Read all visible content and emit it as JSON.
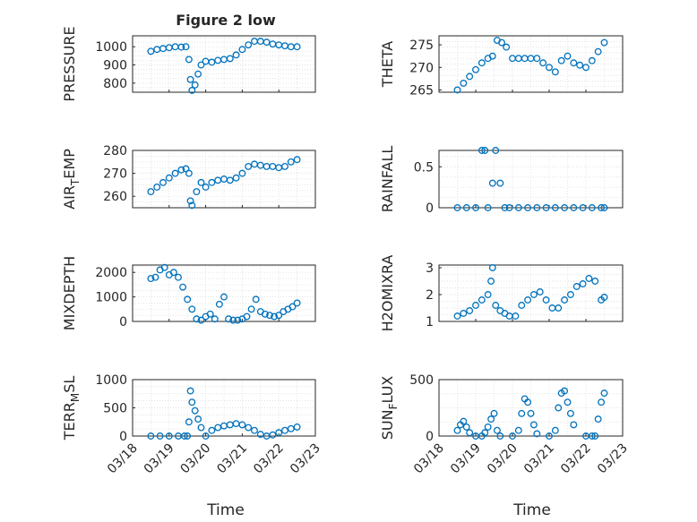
{
  "figure": {
    "title": "Figure 2 low",
    "xlabel": "Time",
    "xtick_labels": [
      "03/18",
      "03/19",
      "03/20",
      "03/21",
      "03/22",
      "03/23"
    ]
  },
  "style": {
    "marker_color": "#0072BD",
    "axis_color": "#262626",
    "grid_color": "#d9d9d9"
  },
  "chart_data": [
    {
      "type": "scatter",
      "ylabel": "PRESSURE",
      "ylim": [
        750,
        1060
      ],
      "yticks": [
        800,
        900,
        1000
      ],
      "ytick_labels": [
        "800",
        "900",
        "1000"
      ],
      "grid": true,
      "x": [
        "03/18 12:00",
        "03/18 16:00",
        "03/18 20:00",
        "03/19 00:00",
        "03/19 04:00",
        "03/19 08:00",
        "03/19 11:00",
        "03/19 13:00",
        "03/19 14:00",
        "03/19 15:00",
        "03/19 17:00",
        "03/19 19:00",
        "03/19 21:00",
        "03/20 00:00",
        "03/20 04:00",
        "03/20 08:00",
        "03/20 12:00",
        "03/20 16:00",
        "03/20 20:00",
        "03/21 00:00",
        "03/21 04:00",
        "03/21 08:00",
        "03/21 12:00",
        "03/21 16:00",
        "03/21 20:00",
        "03/22 00:00",
        "03/22 04:00",
        "03/22 08:00",
        "03/22 12:00"
      ],
      "y": [
        975,
        985,
        990,
        995,
        1000,
        998,
        1000,
        930,
        820,
        760,
        790,
        850,
        900,
        920,
        915,
        925,
        930,
        935,
        955,
        985,
        1010,
        1030,
        1030,
        1025,
        1015,
        1010,
        1005,
        1000,
        1000
      ]
    },
    {
      "type": "scatter",
      "ylabel": "THETA",
      "ylim": [
        264.5,
        277
      ],
      "yticks": [
        265,
        270,
        275
      ],
      "ytick_labels": [
        "265",
        "270",
        "275"
      ],
      "grid": true,
      "x": [
        "03/18 12:00",
        "03/18 16:00",
        "03/18 20:00",
        "03/19 00:00",
        "03/19 04:00",
        "03/19 08:00",
        "03/19 11:00",
        "03/19 14:00",
        "03/19 17:00",
        "03/19 20:00",
        "03/20 00:00",
        "03/20 04:00",
        "03/20 08:00",
        "03/20 12:00",
        "03/20 16:00",
        "03/20 20:00",
        "03/21 00:00",
        "03/21 04:00",
        "03/21 08:00",
        "03/21 12:00",
        "03/21 16:00",
        "03/21 20:00",
        "03/22 00:00",
        "03/22 04:00",
        "03/22 08:00",
        "03/22 12:00"
      ],
      "y": [
        265,
        266.5,
        268,
        269.5,
        271,
        272,
        272.5,
        276,
        275.5,
        274.5,
        272,
        272,
        272,
        272,
        272,
        271,
        270,
        269,
        271.5,
        272.5,
        271,
        270.5,
        270,
        271.5,
        273.5,
        275.5
      ]
    },
    {
      "type": "scatter",
      "ylabel": "AIR",
      "ylabel_sub": "T",
      "ylabel_rest": "EMP",
      "ylim": [
        255,
        280
      ],
      "yticks": [
        260,
        270,
        280
      ],
      "ytick_labels": [
        "260",
        "270",
        "280"
      ],
      "grid": true,
      "x": [
        "03/18 12:00",
        "03/18 16:00",
        "03/18 20:00",
        "03/19 00:00",
        "03/19 04:00",
        "03/19 08:00",
        "03/19 11:00",
        "03/19 13:00",
        "03/19 14:00",
        "03/19 15:00",
        "03/19 18:00",
        "03/19 21:00",
        "03/20 00:00",
        "03/20 04:00",
        "03/20 08:00",
        "03/20 12:00",
        "03/20 16:00",
        "03/20 20:00",
        "03/21 00:00",
        "03/21 04:00",
        "03/21 08:00",
        "03/21 12:00",
        "03/21 16:00",
        "03/21 20:00",
        "03/22 00:00",
        "03/22 04:00",
        "03/22 08:00",
        "03/22 12:00"
      ],
      "y": [
        262,
        264,
        266,
        268,
        270,
        271.5,
        272,
        270,
        258,
        256,
        262,
        266,
        264,
        266,
        267,
        267.5,
        267,
        268,
        270,
        273,
        274,
        273.5,
        273,
        273,
        272.5,
        273,
        275,
        276
      ]
    },
    {
      "type": "scatter",
      "ylabel": "RAINFALL",
      "ylim": [
        0,
        0.7
      ],
      "yticks": [
        0,
        0.5
      ],
      "ytick_labels": [
        "0",
        "0.5"
      ],
      "grid": true,
      "x": [
        "03/18 12:00",
        "03/18 18:00",
        "03/19 00:00",
        "03/19 04:00",
        "03/19 06:00",
        "03/19 08:00",
        "03/19 11:00",
        "03/19 13:00",
        "03/19 16:00",
        "03/19 19:00",
        "03/19 22:00",
        "03/20 04:00",
        "03/20 10:00",
        "03/20 16:00",
        "03/20 22:00",
        "03/21 04:00",
        "03/21 10:00",
        "03/21 16:00",
        "03/21 22:00",
        "03/22 04:00",
        "03/22 10:00",
        "03/22 12:00"
      ],
      "y": [
        0,
        0,
        0,
        0.7,
        0.7,
        0,
        0.3,
        0.7,
        0.3,
        0,
        0,
        0,
        0,
        0,
        0,
        0,
        0,
        0,
        0,
        0,
        0,
        0
      ]
    },
    {
      "type": "scatter",
      "ylabel": "MIXDEPTH",
      "ylim": [
        0,
        2300
      ],
      "yticks": [
        0,
        1000,
        2000
      ],
      "ytick_labels": [
        "0",
        "1000",
        "2000"
      ],
      "grid": true,
      "x": [
        "03/18 12:00",
        "03/18 15:00",
        "03/18 18:00",
        "03/18 21:00",
        "03/19 00:00",
        "03/19 03:00",
        "03/19 06:00",
        "03/19 09:00",
        "03/19 12:00",
        "03/19 15:00",
        "03/19 18:00",
        "03/19 21:00",
        "03/20 00:00",
        "03/20 03:00",
        "03/20 06:00",
        "03/20 09:00",
        "03/20 12:00",
        "03/20 15:00",
        "03/20 18:00",
        "03/20 21:00",
        "03/21 00:00",
        "03/21 03:00",
        "03/21 06:00",
        "03/21 09:00",
        "03/21 12:00",
        "03/21 15:00",
        "03/21 18:00",
        "03/21 21:00",
        "03/22 00:00",
        "03/22 03:00",
        "03/22 06:00",
        "03/22 09:00",
        "03/22 12:00"
      ],
      "y": [
        1750,
        1800,
        2100,
        2200,
        1900,
        2000,
        1800,
        1400,
        900,
        500,
        100,
        50,
        200,
        300,
        100,
        700,
        1000,
        100,
        50,
        50,
        100,
        200,
        500,
        900,
        400,
        300,
        250,
        200,
        250,
        400,
        500,
        600,
        750
      ]
    },
    {
      "type": "scatter",
      "ylabel": "H2OMIXRA",
      "ylim": [
        1,
        3.1
      ],
      "yticks": [
        1,
        2,
        3
      ],
      "ytick_labels": [
        "1",
        "2",
        "3"
      ],
      "grid": true,
      "x": [
        "03/18 12:00",
        "03/18 16:00",
        "03/18 20:00",
        "03/19 00:00",
        "03/19 04:00",
        "03/19 08:00",
        "03/19 10:00",
        "03/19 11:00",
        "03/19 13:00",
        "03/19 16:00",
        "03/19 19:00",
        "03/19 22:00",
        "03/20 02:00",
        "03/20 06:00",
        "03/20 10:00",
        "03/20 14:00",
        "03/20 18:00",
        "03/20 22:00",
        "03/21 02:00",
        "03/21 06:00",
        "03/21 10:00",
        "03/21 14:00",
        "03/21 18:00",
        "03/21 22:00",
        "03/22 02:00",
        "03/22 06:00",
        "03/22 10:00",
        "03/22 12:00"
      ],
      "y": [
        1.2,
        1.3,
        1.4,
        1.6,
        1.8,
        2.0,
        2.5,
        3.0,
        1.6,
        1.4,
        1.3,
        1.2,
        1.2,
        1.6,
        1.8,
        2.0,
        2.1,
        1.8,
        1.5,
        1.5,
        1.8,
        2.0,
        2.3,
        2.4,
        2.6,
        2.5,
        1.8,
        1.9
      ]
    },
    {
      "type": "scatter",
      "ylabel": "TERR",
      "ylabel_sub": "M",
      "ylabel_rest": "SL",
      "ylim": [
        0,
        1000
      ],
      "yticks": [
        0,
        500,
        1000
      ],
      "ytick_labels": [
        "0",
        "500",
        "1000"
      ],
      "grid": true,
      "x": [
        "03/18 12:00",
        "03/18 18:00",
        "03/19 00:00",
        "03/19 06:00",
        "03/19 10:00",
        "03/19 12:00",
        "03/19 13:00",
        "03/19 14:00",
        "03/19 15:00",
        "03/19 17:00",
        "03/19 19:00",
        "03/19 21:00",
        "03/20 00:00",
        "03/20 04:00",
        "03/20 08:00",
        "03/20 12:00",
        "03/20 16:00",
        "03/20 20:00",
        "03/21 00:00",
        "03/21 04:00",
        "03/21 08:00",
        "03/21 12:00",
        "03/21 16:00",
        "03/21 20:00",
        "03/22 00:00",
        "03/22 04:00",
        "03/22 08:00",
        "03/22 12:00"
      ],
      "y": [
        0,
        0,
        0,
        0,
        0,
        0,
        250,
        800,
        600,
        450,
        300,
        150,
        0,
        100,
        150,
        180,
        200,
        220,
        200,
        150,
        100,
        30,
        0,
        20,
        60,
        100,
        130,
        160
      ]
    },
    {
      "type": "scatter",
      "ylabel": "SUN",
      "ylabel_sub": "F",
      "ylabel_rest": "LUX",
      "ylim": [
        0,
        500
      ],
      "yticks": [
        0,
        500
      ],
      "ytick_labels": [
        "0",
        "500"
      ],
      "grid": true,
      "x": [
        "03/18 12:00",
        "03/18 14:00",
        "03/18 16:00",
        "03/18 18:00",
        "03/18 20:00",
        "03/19 00:00",
        "03/19 04:00",
        "03/19 06:00",
        "03/19 08:00",
        "03/19 10:00",
        "03/19 12:00",
        "03/19 14:00",
        "03/19 16:00",
        "03/20 00:00",
        "03/20 04:00",
        "03/20 06:00",
        "03/20 08:00",
        "03/20 10:00",
        "03/20 12:00",
        "03/20 14:00",
        "03/20 16:00",
        "03/21 00:00",
        "03/21 04:00",
        "03/21 06:00",
        "03/21 08:00",
        "03/21 10:00",
        "03/21 12:00",
        "03/21 14:00",
        "03/21 16:00",
        "03/22 00:00",
        "03/22 04:00",
        "03/22 06:00",
        "03/22 08:00",
        "03/22 10:00",
        "03/22 12:00"
      ],
      "y": [
        50,
        100,
        130,
        80,
        30,
        0,
        0,
        30,
        80,
        150,
        200,
        50,
        0,
        0,
        50,
        200,
        330,
        300,
        200,
        100,
        20,
        0,
        50,
        250,
        380,
        400,
        300,
        200,
        100,
        0,
        0,
        0,
        150,
        300,
        380
      ]
    }
  ]
}
